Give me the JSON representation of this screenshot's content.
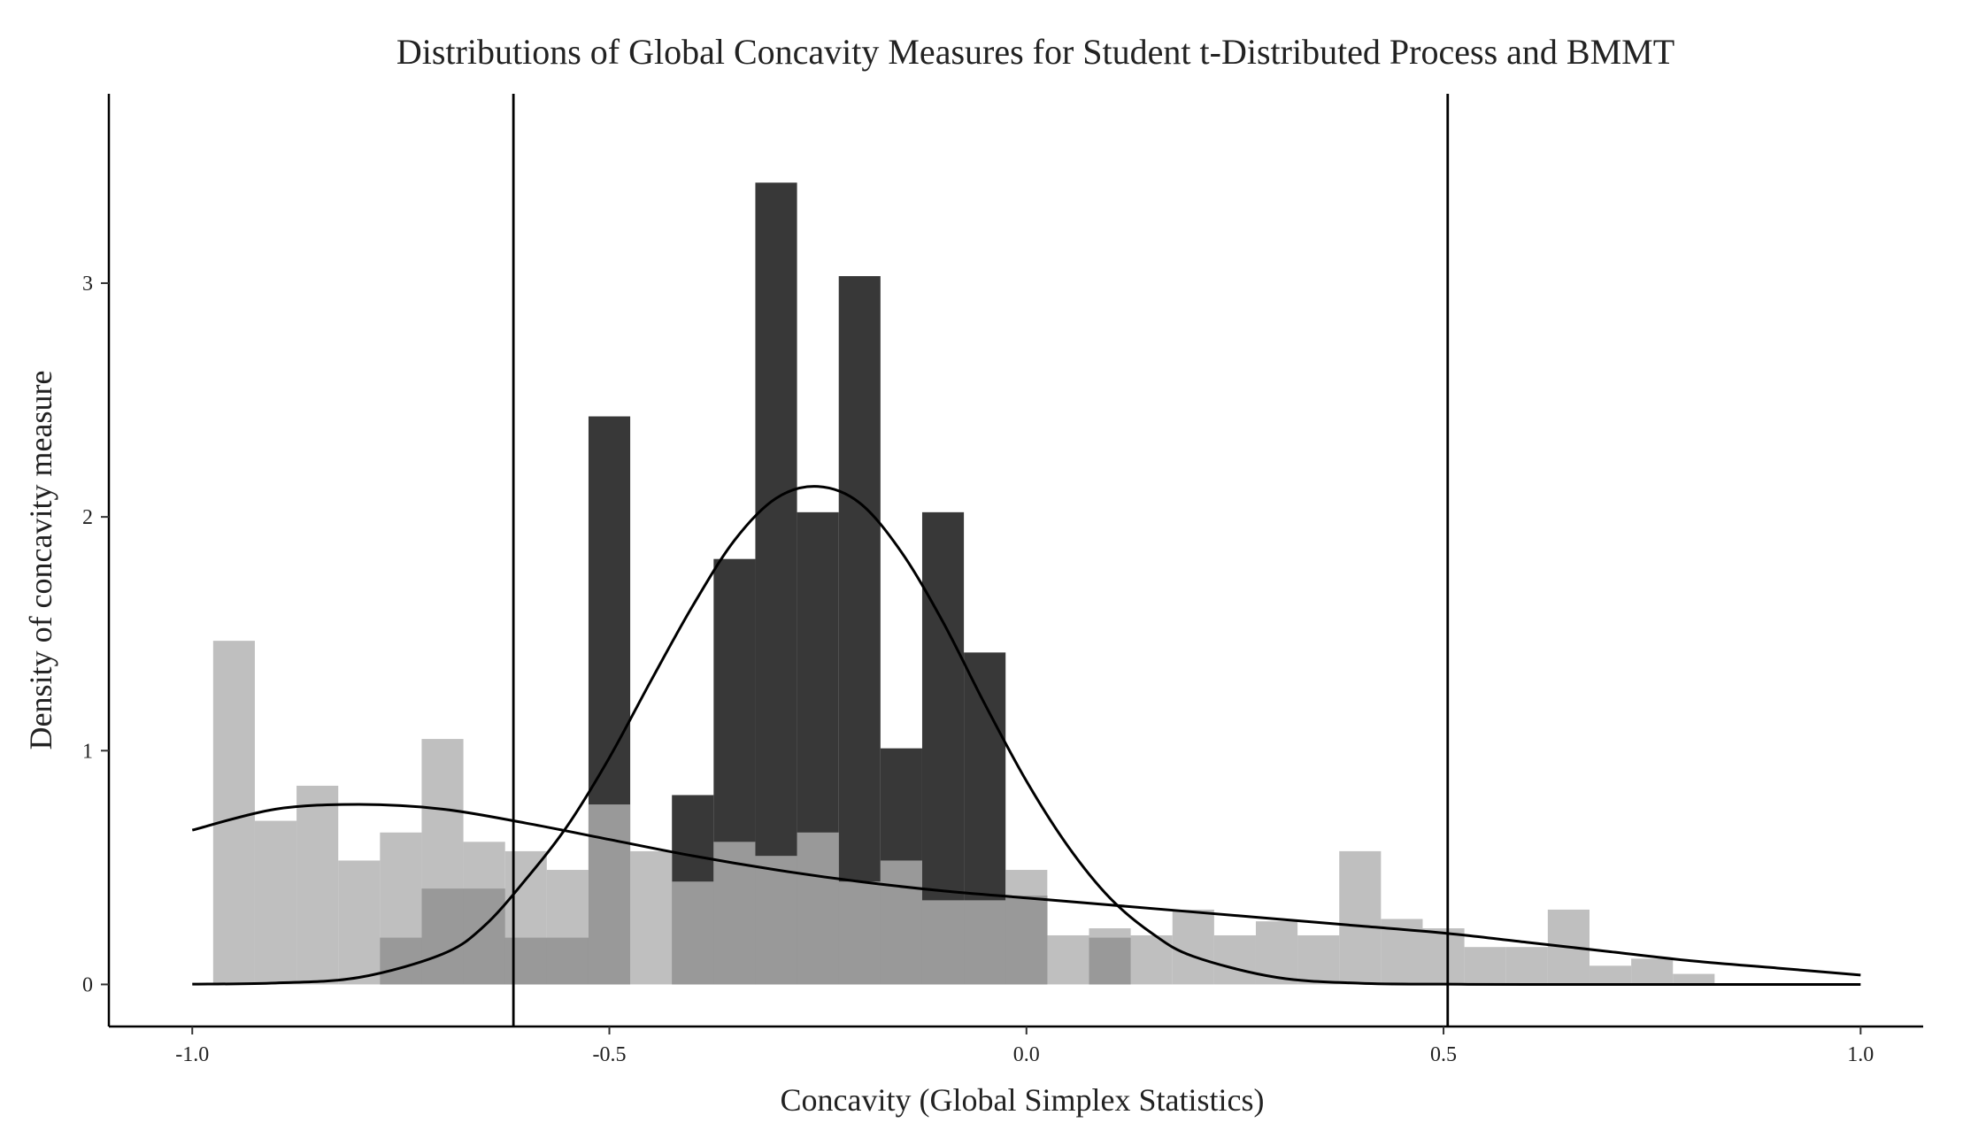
{
  "chart_data": {
    "type": "bar",
    "title": "Distributions of Global Concavity Measures for Student t-Distributed Process and BMMT",
    "xlabel": "Concavity (Global Simplex Statistics)",
    "ylabel": "Density of concavity measure",
    "xlim": [
      -1.1,
      1.075
    ],
    "ylim": [
      -0.18,
      3.81
    ],
    "xticks": [
      -1.0,
      -0.5,
      0.0,
      0.5,
      1.0
    ],
    "xtick_labels": [
      "-1.0",
      "-0.5",
      "0.0",
      "0.5",
      "1.0"
    ],
    "yticks": [
      0,
      1,
      2,
      3
    ],
    "ytick_labels": [
      "0",
      "1",
      "2",
      "3"
    ],
    "grid": false,
    "legend": "none",
    "bin_width": 0.05,
    "series": [
      {
        "kind": "histogram",
        "color": "#383838",
        "x": [
          -0.75,
          -0.7,
          -0.65,
          -0.6,
          -0.55,
          -0.5,
          -0.45,
          -0.4,
          -0.35,
          -0.3,
          -0.25,
          -0.2,
          -0.15,
          -0.1,
          -0.05,
          0.0,
          0.05,
          0.1
        ],
        "values": [
          0.2,
          0.41,
          0.41,
          0.2,
          0.2,
          2.43,
          0.0,
          0.81,
          1.82,
          3.43,
          2.02,
          3.03,
          1.01,
          2.02,
          1.42,
          0.38,
          0.0,
          0.2
        ]
      },
      {
        "kind": "histogram",
        "color": "#b0b0b0",
        "opacity": 0.81,
        "x": [
          -0.95,
          -0.9,
          -0.85,
          -0.8,
          -0.75,
          -0.7,
          -0.65,
          -0.6,
          -0.55,
          -0.5,
          -0.45,
          -0.4,
          -0.35,
          -0.3,
          -0.25,
          -0.2,
          -0.15,
          -0.1,
          -0.05,
          0.0,
          0.05,
          0.1,
          0.15,
          0.2,
          0.25,
          0.3,
          0.35,
          0.4,
          0.45,
          0.5,
          0.55,
          0.6,
          0.65,
          0.7,
          0.75,
          0.8
        ],
        "values": [
          1.47,
          0.7,
          0.85,
          0.53,
          0.65,
          1.05,
          0.61,
          0.57,
          0.49,
          0.77,
          0.57,
          0.44,
          0.61,
          0.55,
          0.65,
          0.44,
          0.53,
          0.36,
          0.36,
          0.49,
          0.21,
          0.24,
          0.21,
          0.32,
          0.21,
          0.27,
          0.21,
          0.57,
          0.28,
          0.24,
          0.16,
          0.16,
          0.32,
          0.08,
          0.11,
          0.045
        ]
      },
      {
        "kind": "density-curve",
        "x": [
          -1.0,
          -0.9,
          -0.8,
          -0.7,
          -0.65,
          -0.6,
          -0.55,
          -0.5,
          -0.45,
          -0.4,
          -0.35,
          -0.3,
          -0.25,
          -0.2,
          -0.15,
          -0.1,
          -0.05,
          0.0,
          0.05,
          0.1,
          0.15,
          0.2,
          0.3,
          0.4,
          0.5,
          0.6,
          0.8,
          1.0
        ],
        "values": [
          0.001,
          0.006,
          0.03,
          0.13,
          0.25,
          0.45,
          0.68,
          0.97,
          1.3,
          1.62,
          1.9,
          2.08,
          2.13,
          2.06,
          1.85,
          1.55,
          1.2,
          0.87,
          0.59,
          0.37,
          0.22,
          0.12,
          0.03,
          0.005,
          0.001,
          0,
          0,
          0
        ]
      },
      {
        "kind": "density-curve",
        "x": [
          -1.0,
          -0.9,
          -0.8,
          -0.7,
          -0.6,
          -0.5,
          -0.4,
          -0.3,
          -0.2,
          -0.1,
          0.0,
          0.1,
          0.2,
          0.3,
          0.4,
          0.5,
          0.6,
          0.7,
          0.8,
          0.9,
          1.0
        ],
        "values": [
          0.66,
          0.75,
          0.77,
          0.75,
          0.69,
          0.62,
          0.55,
          0.49,
          0.44,
          0.4,
          0.37,
          0.34,
          0.31,
          0.28,
          0.25,
          0.22,
          0.18,
          0.14,
          0.1,
          0.07,
          0.04
        ]
      }
    ],
    "vlines": [
      -0.615,
      0.505
    ]
  }
}
